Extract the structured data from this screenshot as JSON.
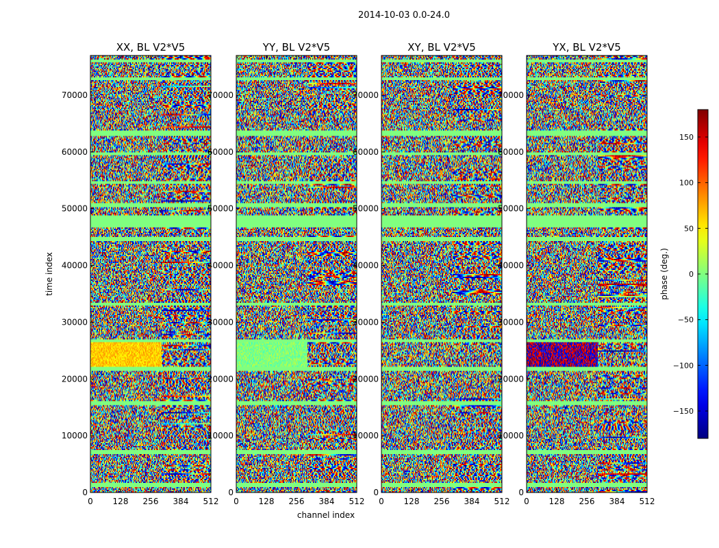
{
  "figure": {
    "suptitle": "2014-10-03 0.0-24.0"
  },
  "chart_data": {
    "type": "heatmap",
    "xlabel": "channel index",
    "ylabel": "time index",
    "xlim": [
      0,
      512
    ],
    "ylim": [
      0,
      77000
    ],
    "x_ticks": [
      0,
      128,
      256,
      384,
      512
    ],
    "y_ticks": [
      0,
      10000,
      20000,
      30000,
      40000,
      50000,
      60000,
      70000
    ],
    "colormap": "jet",
    "panels": [
      {
        "title": "XX, BL V2*V5",
        "pol": "XX"
      },
      {
        "title": "YY, BL V2*V5",
        "pol": "YY"
      },
      {
        "title": "XY, BL V2*V5",
        "pol": "XY"
      },
      {
        "title": "YX, BL V2*V5",
        "pol": "YX"
      }
    ],
    "colorbar": {
      "label": "phase (deg.)",
      "range": [
        -180,
        180
      ],
      "ticks": [
        150,
        100,
        50,
        0,
        -50,
        -100,
        -150
      ]
    },
    "flagged_time_bands": [
      [
        1200,
        1900
      ],
      [
        6900,
        7500
      ],
      [
        15500,
        16200
      ],
      [
        21600,
        22200
      ],
      [
        26700,
        27100
      ],
      [
        33000,
        33500
      ],
      [
        44500,
        45000
      ],
      [
        46800,
        49000
      ],
      [
        50400,
        51100
      ],
      [
        54400,
        55100
      ],
      [
        59500,
        60100
      ],
      [
        63000,
        63800
      ],
      [
        72700,
        73300
      ],
      [
        75800,
        76300
      ]
    ]
  }
}
